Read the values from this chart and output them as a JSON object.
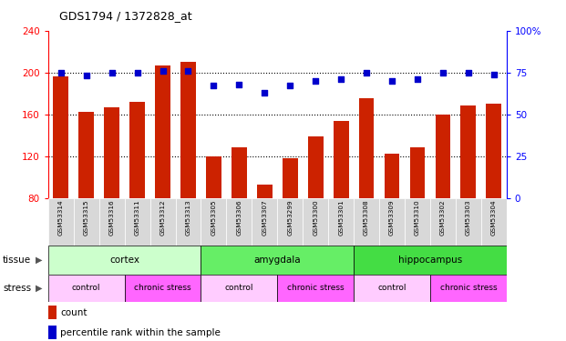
{
  "title": "GDS1794 / 1372828_at",
  "samples": [
    "GSM53314",
    "GSM53315",
    "GSM53316",
    "GSM53311",
    "GSM53312",
    "GSM53313",
    "GSM53305",
    "GSM53306",
    "GSM53307",
    "GSM53299",
    "GSM53300",
    "GSM53301",
    "GSM53308",
    "GSM53309",
    "GSM53310",
    "GSM53302",
    "GSM53303",
    "GSM53304"
  ],
  "counts": [
    196,
    162,
    167,
    172,
    207,
    210,
    120,
    128,
    93,
    118,
    139,
    154,
    175,
    122,
    128,
    160,
    168,
    170
  ],
  "percentiles": [
    75,
    73,
    75,
    75,
    76,
    76,
    67,
    68,
    63,
    67,
    70,
    71,
    75,
    70,
    71,
    75,
    75,
    74
  ],
  "bar_color": "#cc2200",
  "dot_color": "#0000cc",
  "ylim_left": [
    80,
    240
  ],
  "ylim_right": [
    0,
    100
  ],
  "yticks_left": [
    80,
    120,
    160,
    200,
    240
  ],
  "yticks_right": [
    0,
    25,
    50,
    75,
    100
  ],
  "tissue_groups": [
    {
      "label": "cortex",
      "start": 0,
      "end": 6,
      "color": "#ccffcc"
    },
    {
      "label": "amygdala",
      "start": 6,
      "end": 12,
      "color": "#66ee66"
    },
    {
      "label": "hippocampus",
      "start": 12,
      "end": 18,
      "color": "#44dd44"
    }
  ],
  "stress_groups": [
    {
      "label": "control",
      "start": 0,
      "end": 3,
      "color": "#ffccff"
    },
    {
      "label": "chronic stress",
      "start": 3,
      "end": 6,
      "color": "#ff66ff"
    },
    {
      "label": "control",
      "start": 6,
      "end": 9,
      "color": "#ffccff"
    },
    {
      "label": "chronic stress",
      "start": 9,
      "end": 12,
      "color": "#ff66ff"
    },
    {
      "label": "control",
      "start": 12,
      "end": 15,
      "color": "#ffccff"
    },
    {
      "label": "chronic stress",
      "start": 15,
      "end": 18,
      "color": "#ff66ff"
    }
  ],
  "sample_cell_color": "#d8d8d8",
  "legend_count_color": "#cc2200",
  "legend_dot_color": "#0000cc",
  "tissue_row_label": "tissue",
  "stress_row_label": "stress",
  "bar_width": 0.6,
  "fig_width": 6.21,
  "fig_height": 3.75,
  "dpi": 100
}
